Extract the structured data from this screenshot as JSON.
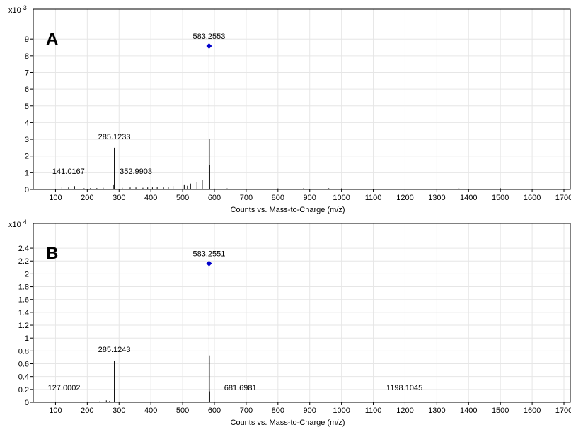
{
  "chart_data": [
    {
      "type": "bar",
      "panel_label": "A",
      "y_multiplier_base": "x10",
      "y_multiplier_exp": "3",
      "xlabel": "Counts vs. Mass-to-Charge (m/z)",
      "xlim": [
        30,
        1720
      ],
      "ylim": [
        0,
        9.6
      ],
      "x_ticks": [
        100,
        200,
        300,
        400,
        500,
        600,
        700,
        800,
        900,
        1000,
        1100,
        1200,
        1300,
        1400,
        1500,
        1600,
        1700
      ],
      "y_ticks": [
        0,
        1,
        2,
        3,
        4,
        5,
        6,
        7,
        8,
        9
      ],
      "grid": true,
      "marker_color": "#0000cc",
      "peaks": [
        {
          "x": 583.2553,
          "y": 8.5
        },
        {
          "x": 584.26,
          "y": 3.0
        },
        {
          "x": 585.26,
          "y": 1.45
        },
        {
          "x": 285.1233,
          "y": 2.5
        },
        {
          "x": 286.13,
          "y": 0.5
        },
        {
          "x": 282,
          "y": 0.3
        },
        {
          "x": 141.0167,
          "y": 0.12
        },
        {
          "x": 120,
          "y": 0.15
        },
        {
          "x": 160,
          "y": 0.2
        },
        {
          "x": 352.9903,
          "y": 0.12
        },
        {
          "x": 562,
          "y": 0.55
        },
        {
          "x": 545,
          "y": 0.45
        },
        {
          "x": 525,
          "y": 0.35
        },
        {
          "x": 505,
          "y": 0.3
        },
        {
          "x": 515,
          "y": 0.22
        },
        {
          "x": 492,
          "y": 0.18
        },
        {
          "x": 470,
          "y": 0.2
        },
        {
          "x": 455,
          "y": 0.15
        },
        {
          "x": 440,
          "y": 0.12
        },
        {
          "x": 420,
          "y": 0.15
        },
        {
          "x": 405,
          "y": 0.12
        },
        {
          "x": 390,
          "y": 0.12
        },
        {
          "x": 375,
          "y": 0.1
        },
        {
          "x": 335,
          "y": 0.12
        },
        {
          "x": 310,
          "y": 0.1
        },
        {
          "x": 250,
          "y": 0.1
        },
        {
          "x": 230,
          "y": 0.08
        },
        {
          "x": 210,
          "y": 0.08
        },
        {
          "x": 190,
          "y": 0.07
        },
        {
          "x": 600,
          "y": 0.05
        },
        {
          "x": 640,
          "y": 0.06
        },
        {
          "x": 800,
          "y": 0.06
        },
        {
          "x": 880,
          "y": 0.06
        },
        {
          "x": 960,
          "y": 0.07
        },
        {
          "x": 1000,
          "y": 0.06
        },
        {
          "x": 1370,
          "y": 0.05
        },
        {
          "x": 1500,
          "y": 0.07
        }
      ],
      "annotations": [
        {
          "text": "583.2553",
          "x": 583.2553,
          "y": 8.5,
          "marker": true
        },
        {
          "text": "285.1233",
          "x": 285.1233,
          "y": 2.5,
          "marker": false
        },
        {
          "text": "141.0167",
          "x": 141.0167,
          "y": 0.12,
          "marker": false
        },
        {
          "text": "352.9903",
          "x": 352.9903,
          "y": 0.12,
          "marker": false
        }
      ]
    },
    {
      "type": "bar",
      "panel_label": "B",
      "y_multiplier_base": "x10",
      "y_multiplier_exp": "4",
      "xlabel": "Counts vs. Mass-to-Charge (m/z)",
      "xlim": [
        30,
        1720
      ],
      "ylim": [
        0,
        2.5
      ],
      "x_ticks": [
        100,
        200,
        300,
        400,
        500,
        600,
        700,
        800,
        900,
        1000,
        1100,
        1200,
        1300,
        1400,
        1500,
        1600,
        1700
      ],
      "y_ticks": [
        0,
        0.2,
        0.4,
        0.6,
        0.8,
        1,
        1.2,
        1.4,
        1.6,
        1.8,
        2,
        2.2,
        2.4
      ],
      "grid": true,
      "marker_color": "#0000cc",
      "peaks": [
        {
          "x": 583.2551,
          "y": 2.14
        },
        {
          "x": 584.26,
          "y": 0.73
        },
        {
          "x": 585.26,
          "y": 0.17
        },
        {
          "x": 285.1243,
          "y": 0.65
        },
        {
          "x": 286.13,
          "y": 0.05
        },
        {
          "x": 127.0002,
          "y": 0.01
        },
        {
          "x": 240,
          "y": 0.02
        },
        {
          "x": 260,
          "y": 0.03
        },
        {
          "x": 270,
          "y": 0.02
        },
        {
          "x": 681.6981,
          "y": 0.01
        },
        {
          "x": 1198.1045,
          "y": 0.01
        }
      ],
      "annotations": [
        {
          "text": "583.2551",
          "x": 583.2551,
          "y": 2.14,
          "marker": true
        },
        {
          "text": "285.1243",
          "x": 285.1243,
          "y": 0.65,
          "marker": false
        },
        {
          "text": "127.0002",
          "x": 127.0002,
          "y": 0.01,
          "marker": false
        },
        {
          "text": "681.6981",
          "x": 681.6981,
          "y": 0.01,
          "marker": false
        },
        {
          "text": "1198.1045",
          "x": 1198.1045,
          "y": 0.01,
          "marker": false
        }
      ]
    }
  ]
}
